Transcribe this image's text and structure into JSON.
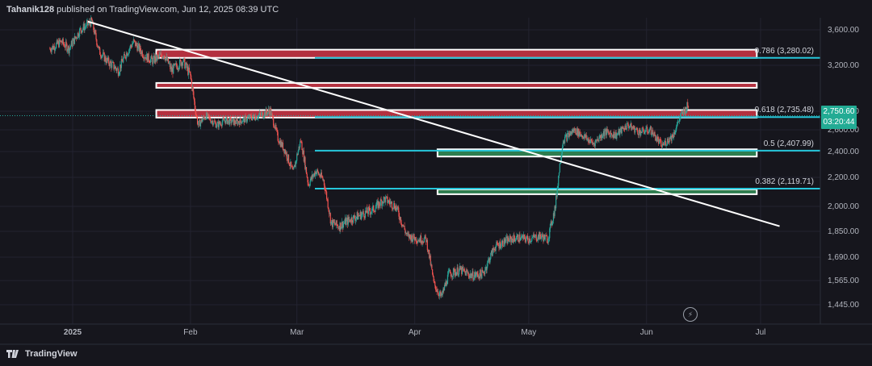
{
  "header": {
    "author": "Tahanik128",
    "text": " published on TradingView.com, Jun 12, 2025 08:39 UTC"
  },
  "footer": {
    "brand": "TradingView"
  },
  "price_badge": {
    "price": "2,750.60",
    "countdown": "03:20:44",
    "color": "#22ab94"
  },
  "colors": {
    "background": "#16161d",
    "grid": "#232330",
    "up": "#26a69a",
    "down": "#ef5350",
    "resistance": "#b3303f",
    "support": "#2e7d4f",
    "fib": "#26c6da",
    "trendline": "#ffffff"
  },
  "chart_data": {
    "type": "candlestick",
    "title": "",
    "xlabel": "",
    "ylabel": "",
    "ylim": [
      1380,
      3750
    ],
    "y_scale": "log",
    "x_ticks": [
      "2025",
      "Feb",
      "Mar",
      "Apr",
      "May",
      "Jun",
      "Jul"
    ],
    "y_ticks": [
      "3,600.00",
      "3,200.00",
      "2,800.00",
      "2,600.00",
      "2,400.00",
      "2,200.00",
      "2,000.00",
      "1,850.00",
      "1,690.00",
      "1,565.00",
      "1,445.00"
    ],
    "price_path": [
      [
        "2024-12-26",
        3380
      ],
      [
        "2024-12-29",
        3460
      ],
      [
        "2024-12-31",
        3380
      ],
      [
        "2025-01-03",
        3600
      ],
      [
        "2025-01-06",
        3700
      ],
      [
        "2025-01-08",
        3350
      ],
      [
        "2025-01-10",
        3250
      ],
      [
        "2025-01-13",
        3150
      ],
      [
        "2025-01-15",
        3320
      ],
      [
        "2025-01-17",
        3460
      ],
      [
        "2025-01-20",
        3300
      ],
      [
        "2025-01-22",
        3250
      ],
      [
        "2025-01-25",
        3320
      ],
      [
        "2025-01-27",
        3150
      ],
      [
        "2025-01-30",
        3250
      ],
      [
        "2025-02-01",
        3100
      ],
      [
        "2025-02-03",
        2650
      ],
      [
        "2025-02-05",
        2750
      ],
      [
        "2025-02-08",
        2650
      ],
      [
        "2025-02-10",
        2700
      ],
      [
        "2025-02-13",
        2680
      ],
      [
        "2025-02-16",
        2720
      ],
      [
        "2025-02-19",
        2750
      ],
      [
        "2025-02-22",
        2800
      ],
      [
        "2025-02-24",
        2520
      ],
      [
        "2025-02-26",
        2400
      ],
      [
        "2025-02-28",
        2230
      ],
      [
        "2025-03-02",
        2500
      ],
      [
        "2025-03-04",
        2150
      ],
      [
        "2025-03-06",
        2250
      ],
      [
        "2025-03-08",
        2180
      ],
      [
        "2025-03-10",
        1900
      ],
      [
        "2025-03-12",
        1880
      ],
      [
        "2025-03-15",
        1920
      ],
      [
        "2025-03-18",
        1950
      ],
      [
        "2025-03-21",
        1980
      ],
      [
        "2025-03-24",
        2050
      ],
      [
        "2025-03-27",
        2000
      ],
      [
        "2025-03-30",
        1820
      ],
      [
        "2025-04-02",
        1800
      ],
      [
        "2025-04-04",
        1800
      ],
      [
        "2025-04-06",
        1550
      ],
      [
        "2025-04-08",
        1480
      ],
      [
        "2025-04-10",
        1600
      ],
      [
        "2025-04-13",
        1620
      ],
      [
        "2025-04-16",
        1590
      ],
      [
        "2025-04-19",
        1600
      ],
      [
        "2025-04-22",
        1750
      ],
      [
        "2025-04-25",
        1790
      ],
      [
        "2025-04-28",
        1810
      ],
      [
        "2025-05-01",
        1800
      ],
      [
        "2025-05-04",
        1820
      ],
      [
        "2025-05-06",
        1800
      ],
      [
        "2025-05-08",
        2000
      ],
      [
        "2025-05-10",
        2500
      ],
      [
        "2025-05-13",
        2600
      ],
      [
        "2025-05-15",
        2550
      ],
      [
        "2025-05-18",
        2470
      ],
      [
        "2025-05-21",
        2580
      ],
      [
        "2025-05-24",
        2550
      ],
      [
        "2025-05-27",
        2650
      ],
      [
        "2025-05-30",
        2580
      ],
      [
        "2025-06-02",
        2600
      ],
      [
        "2025-06-05",
        2450
      ],
      [
        "2025-06-08",
        2550
      ],
      [
        "2025-06-10",
        2750
      ],
      [
        "2025-06-12",
        2850
      ]
    ],
    "fibonacci": [
      {
        "label": "0.786 (3,280.02)",
        "value": 3280.02
      },
      {
        "label": "0.618 (2,735.48)",
        "value": 2735.48
      },
      {
        "label": "0.5 (2,407.99)",
        "value": 2407.99
      },
      {
        "label": "0.382 (2,119.71)",
        "value": 2119.71
      }
    ],
    "zones": [
      {
        "kind": "resistance",
        "from": "2025-01-23",
        "to": "2025-06-30",
        "low": 3280,
        "high": 3370
      },
      {
        "kind": "resistance",
        "from": "2025-01-23",
        "to": "2025-06-30",
        "low": 3000,
        "high": 3040
      },
      {
        "kind": "resistance",
        "from": "2025-01-23",
        "to": "2025-06-30",
        "low": 2730,
        "high": 2810
      },
      {
        "kind": "support",
        "from": "2025-04-07",
        "to": "2025-06-30",
        "low": 2360,
        "high": 2420
      },
      {
        "kind": "support",
        "from": "2025-04-07",
        "to": "2025-06-30",
        "low": 2090,
        "high": 2115
      }
    ],
    "trendline": {
      "from": [
        "2025-01-05",
        3700
      ],
      "to": [
        "2025-07-06",
        1880
      ]
    }
  }
}
